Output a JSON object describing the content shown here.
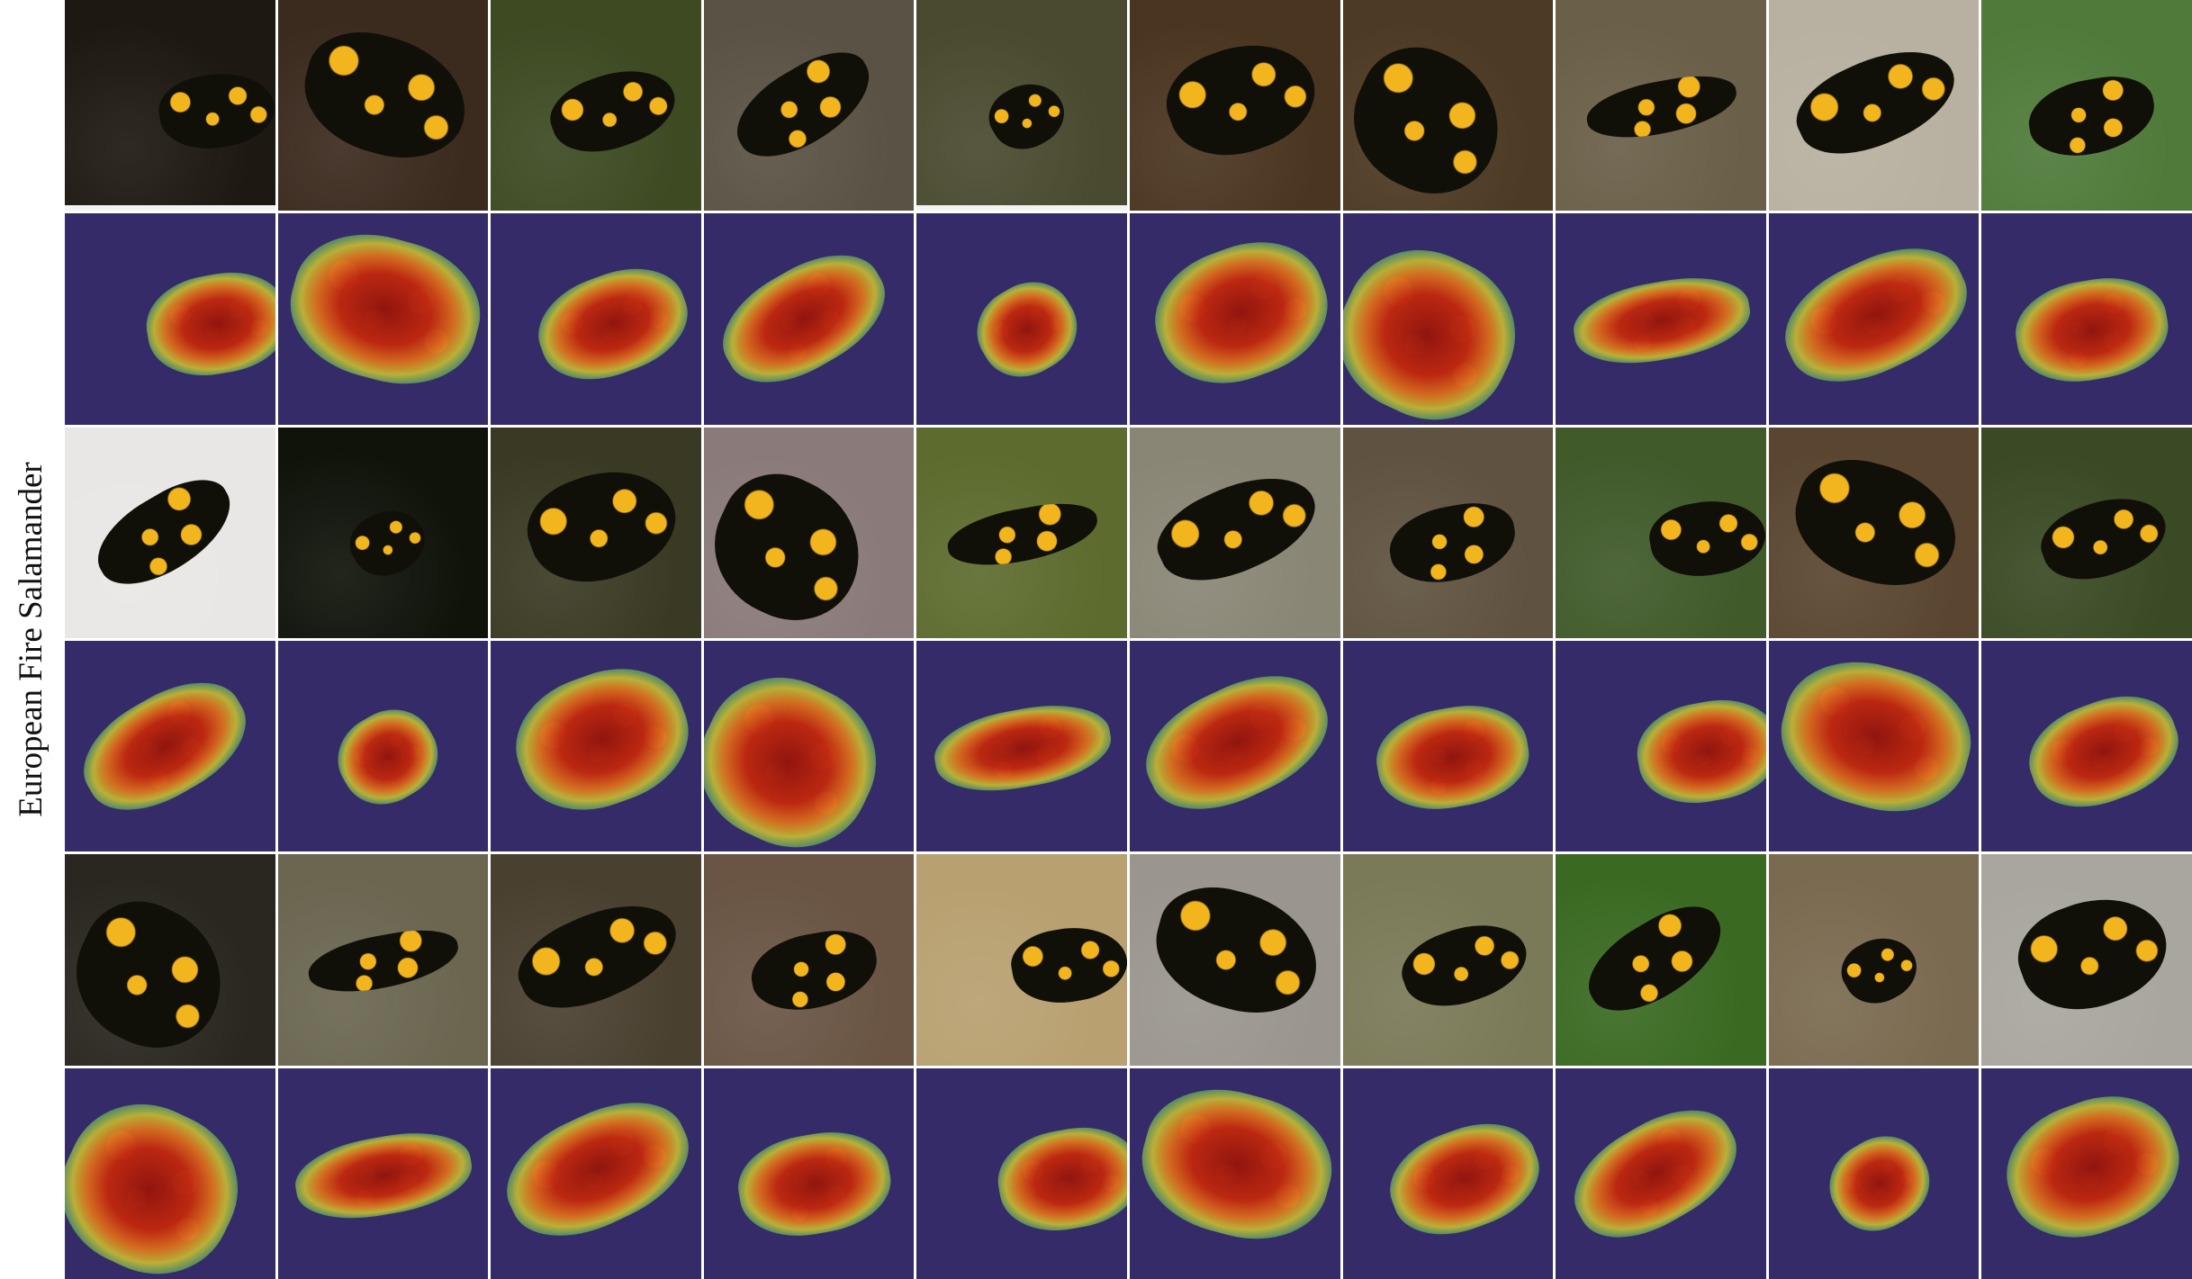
{
  "figure": {
    "row_label": "European Fire Salamander"
  },
  "grid": {
    "columns": 10,
    "rows": 6,
    "row_types": [
      "photo",
      "cam",
      "photo",
      "cam",
      "photo",
      "cam"
    ]
  },
  "colors": {
    "background": "#ffffff",
    "cam_tint": "#3228a0",
    "heat_core": "#961409",
    "salamander_black": "#111008",
    "salamander_yellow": "#f2b51e"
  },
  "backgrounds": [
    [
      "#1e1812",
      "#3b2a1e",
      "#3d4a22",
      "#5a5244",
      "#4a4a30",
      "#4a3520",
      "#4d3a24",
      "#6a5f48",
      "#b8b0a0",
      "#4f7a3a"
    ],
    [
      "#e9e7e6",
      "#0f130a",
      "#3a3a24",
      "#8a7a7a",
      "#5d6b2e",
      "#8a8676",
      "#5f5240",
      "#405a2a",
      "#5a4630",
      "#3a4a24"
    ],
    [
      "#2a2620",
      "#6a6650",
      "#4a4030",
      "#6a5544",
      "#b8a070",
      "#9a968e",
      "#7a7a58",
      "#3a6a22",
      "#7a6a50",
      "#a8a69e"
    ]
  ]
}
